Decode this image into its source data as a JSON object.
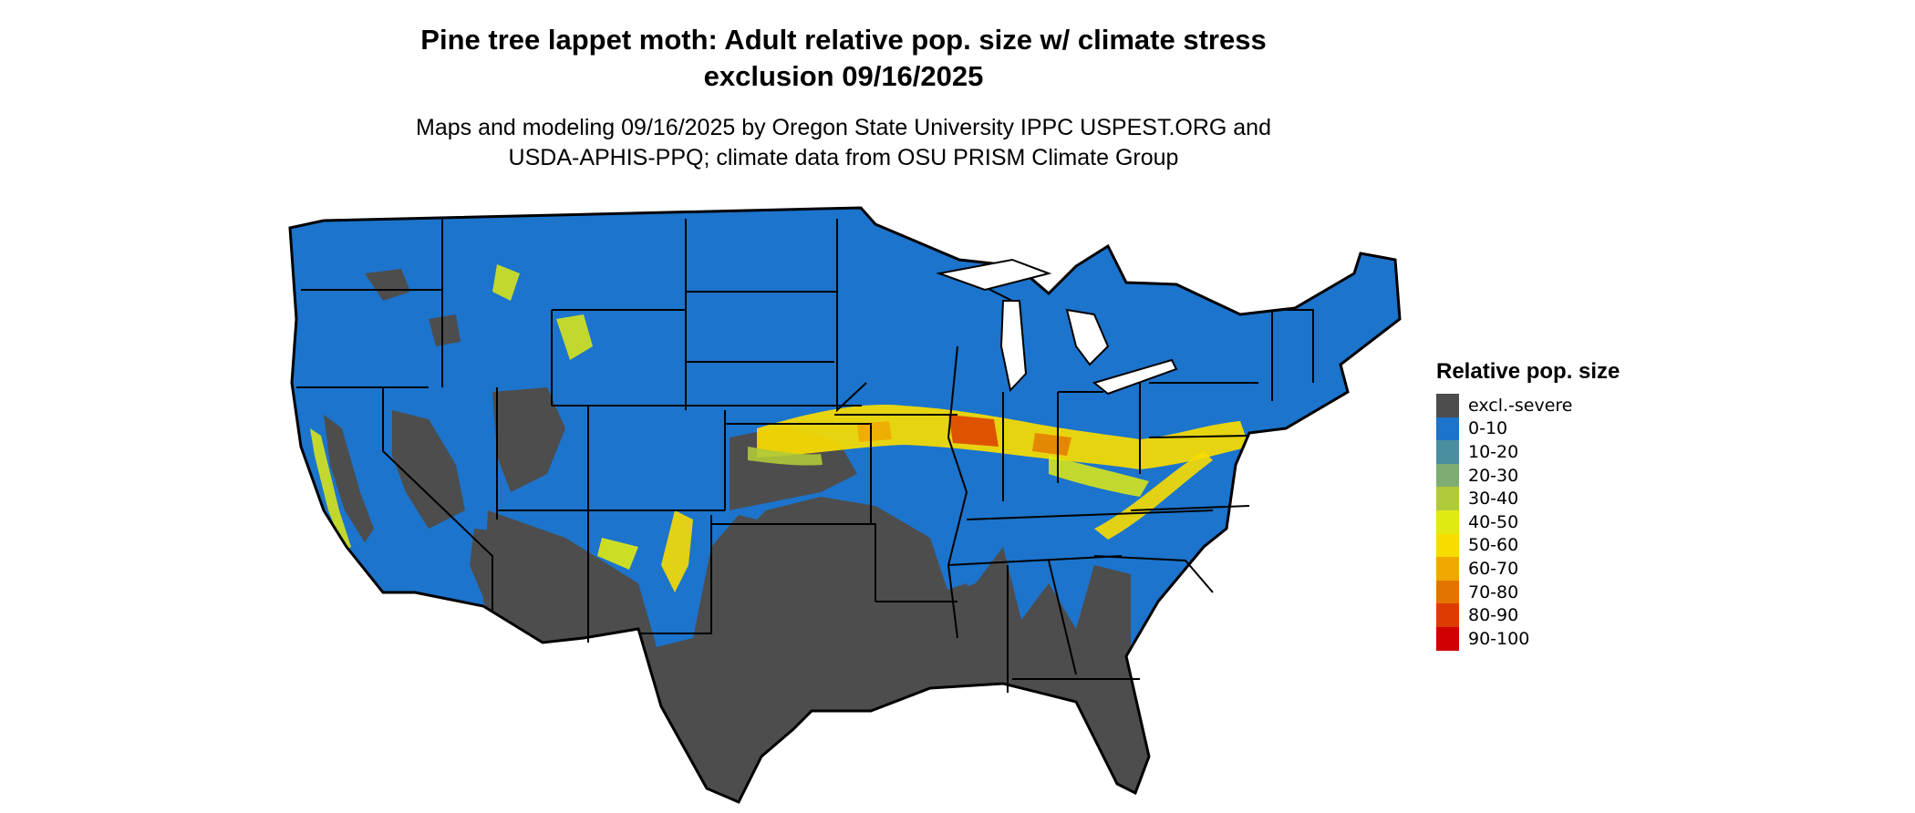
{
  "title_line1": "Pine tree lappet moth: Adult relative pop. size w/ climate stress",
  "title_line2": "exclusion 09/16/2025",
  "subtitle_line1": "Maps and modeling 09/16/2025 by Oregon State University IPPC USPEST.ORG and",
  "subtitle_line2": "USDA-APHIS-PPQ; climate data from OSU PRISM Climate Group",
  "legend": {
    "title": "Relative pop. size",
    "items": [
      {
        "label": "excl.-severe",
        "color": "#4d4d4d"
      },
      {
        "label": "0-10",
        "color": "#1c74cc"
      },
      {
        "label": "10-20",
        "color": "#4a8fa0"
      },
      {
        "label": "20-30",
        "color": "#7eac72"
      },
      {
        "label": "30-40",
        "color": "#b0ca3a"
      },
      {
        "label": "40-50",
        "color": "#e0ea12"
      },
      {
        "label": "50-60",
        "color": "#f8dc00"
      },
      {
        "label": "60-70",
        "color": "#f0a800"
      },
      {
        "label": "70-80",
        "color": "#e47400"
      },
      {
        "label": "80-90",
        "color": "#dc3c00"
      },
      {
        "label": "90-100",
        "color": "#d00000"
      }
    ]
  }
}
